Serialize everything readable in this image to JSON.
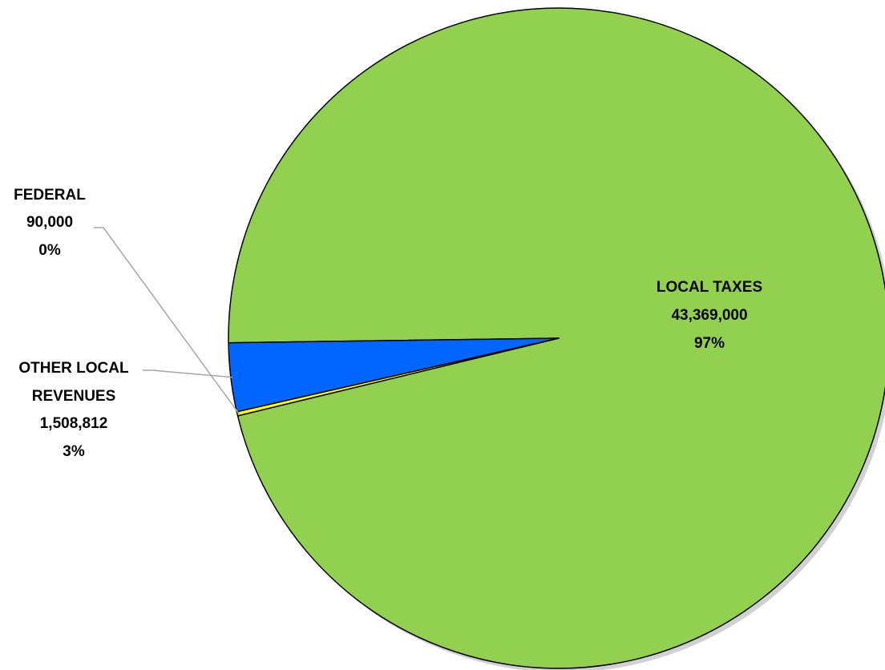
{
  "chart_data": {
    "type": "pie",
    "title": "",
    "slices": [
      {
        "name": "LOCAL TAXES",
        "value_label": "43,369,000",
        "percent_label": "97%",
        "value": 43369000,
        "color": "#92D050"
      },
      {
        "name": "FEDERAL",
        "value_label": "90,000",
        "percent_label": "0%",
        "value": 90000,
        "color": "#FFFF00"
      },
      {
        "name": "OTHER LOCAL REVENUES",
        "name_lines": [
          "OTHER LOCAL",
          "REVENUES"
        ],
        "value_label": "1,508,812",
        "percent_label": "3%",
        "value": 1508812,
        "color": "#0066FF"
      }
    ],
    "legend": "none",
    "labels": "data labels with leader lines"
  }
}
